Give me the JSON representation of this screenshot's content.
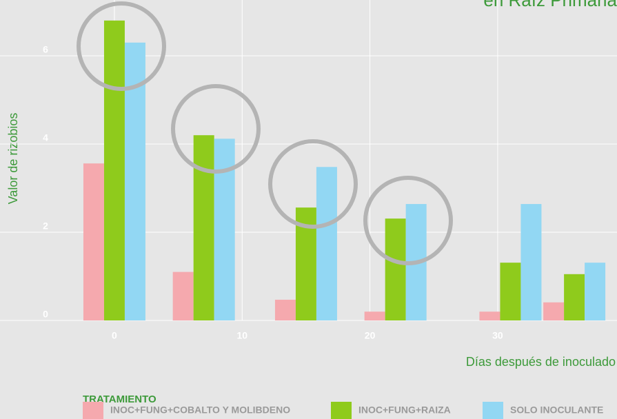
{
  "chart_data": {
    "type": "bar",
    "title": "en Raíz Primaria",
    "x_label": "Días después de inoculado",
    "y_label": "Valor de rizobios",
    "legend_title": "TRATAMIENTO",
    "legend": "bottom",
    "grid": true,
    "x": [
      0,
      7,
      15,
      22,
      31,
      36
    ],
    "xlim": [
      -5,
      39
    ],
    "xticks": [
      0,
      10,
      20,
      30
    ],
    "ylim": [
      0,
      7.2
    ],
    "yticks": [
      0,
      2,
      4,
      6
    ],
    "series": [
      {
        "name": "INOC+FUNG+COBALTO Y MOLIBDENO",
        "color": "#f5a9ae",
        "values": [
          3.56,
          1.1,
          0.47,
          0.2,
          0.2,
          0.41
        ]
      },
      {
        "name": "INOC+FUNG+RAIZA",
        "color": "#8fcb1c",
        "values": [
          6.8,
          4.2,
          2.56,
          2.31,
          1.31,
          1.05
        ]
      },
      {
        "name": "SOLO INOCULANTE",
        "color": "#92d7f3",
        "values": [
          6.3,
          4.12,
          3.48,
          2.64,
          2.64,
          1.31
        ]
      }
    ]
  }
}
